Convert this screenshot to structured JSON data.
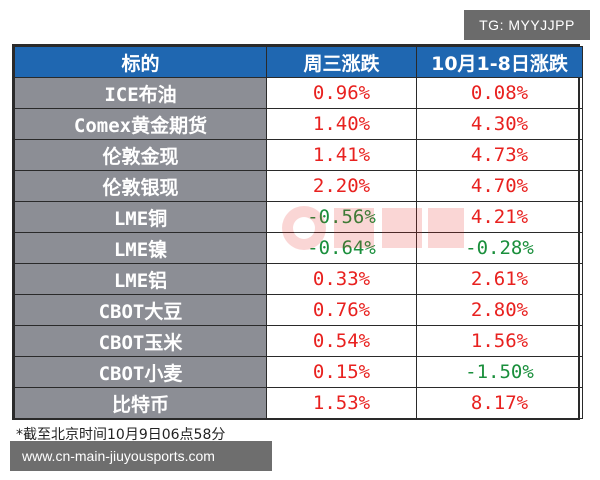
{
  "badge": "TG: MYYJJPP",
  "headers": [
    "标的",
    "周三涨跌",
    "10月1-8日涨跌"
  ],
  "rows": [
    {
      "name": "ICE布油",
      "wed": "0.96%",
      "oct": "0.08%",
      "wed_dir": "up",
      "oct_dir": "up"
    },
    {
      "name": "Comex黄金期货",
      "wed": "1.40%",
      "oct": "4.30%",
      "wed_dir": "up",
      "oct_dir": "up"
    },
    {
      "name": "伦敦金现",
      "wed": "1.41%",
      "oct": "4.73%",
      "wed_dir": "up",
      "oct_dir": "up"
    },
    {
      "name": "伦敦银现",
      "wed": "2.20%",
      "oct": "4.70%",
      "wed_dir": "up",
      "oct_dir": "up"
    },
    {
      "name": "LME铜",
      "wed": "-0.56%",
      "oct": "4.21%",
      "wed_dir": "down",
      "oct_dir": "up"
    },
    {
      "name": "LME镍",
      "wed": "-0.64%",
      "oct": "-0.28%",
      "wed_dir": "down",
      "oct_dir": "down"
    },
    {
      "name": "LME铝",
      "wed": "0.33%",
      "oct": "2.61%",
      "wed_dir": "up",
      "oct_dir": "up"
    },
    {
      "name": "CBOT大豆",
      "wed": "0.76%",
      "oct": "2.80%",
      "wed_dir": "up",
      "oct_dir": "up"
    },
    {
      "name": "CBOT玉米",
      "wed": "0.54%",
      "oct": "1.56%",
      "wed_dir": "up",
      "oct_dir": "up"
    },
    {
      "name": "CBOT小麦",
      "wed": "0.15%",
      "oct": "-1.50%",
      "wed_dir": "up",
      "oct_dir": "down"
    },
    {
      "name": "比特币",
      "wed": "1.53%",
      "oct": "8.17%",
      "wed_dir": "up",
      "oct_dir": "up"
    }
  ],
  "footnote": "*截至北京时间10月9日06点58分",
  "url": "www.cn-main-jiuyousports.com",
  "colors": {
    "header_bg": "#1f67b1",
    "name_bg": "#8c8e95",
    "up": "#e8211f",
    "down": "#1a8f3c"
  }
}
